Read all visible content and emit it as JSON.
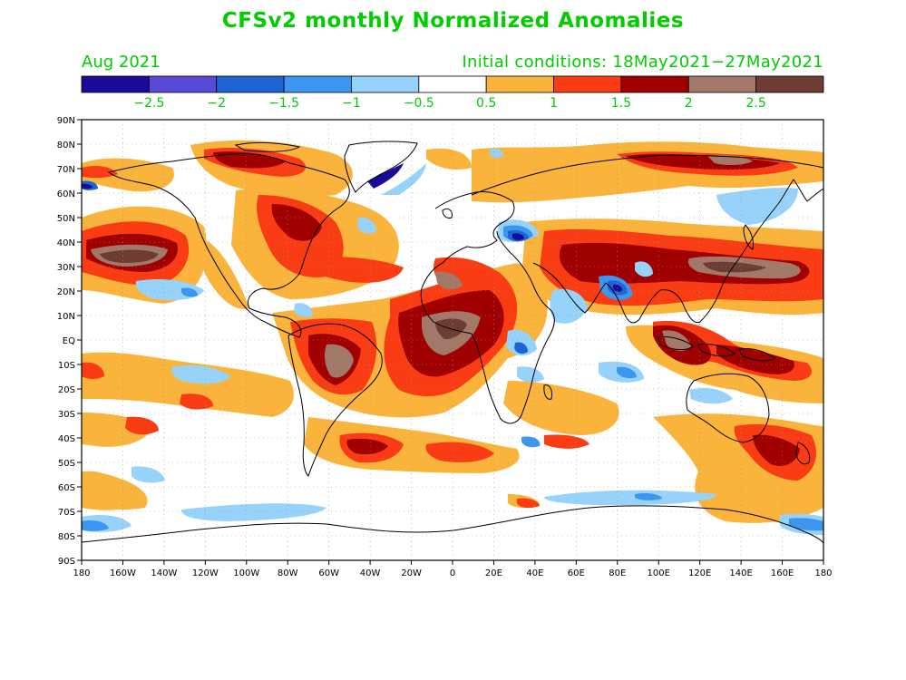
{
  "title": "CFSv2 monthly Normalized Anomalies",
  "month": "Aug 2021",
  "initial_conditions": "Initial conditions: 18May2021−27May2021",
  "colorbar": {
    "colors": [
      "#1a0a99",
      "#5a48d6",
      "#1e64d2",
      "#3c96f0",
      "#96d2fa",
      "#ffffff",
      "#fab43c",
      "#fa3c14",
      "#a00000",
      "#a27868",
      "#6e3c32"
    ],
    "labels": [
      "−2.5",
      "−2",
      "−1.5",
      "−1",
      "−0.5",
      "0.5",
      "1",
      "1.5",
      "2",
      "2.5"
    ]
  },
  "axes": {
    "lat_labels": [
      "90N",
      "80N",
      "70N",
      "60N",
      "50N",
      "40N",
      "30N",
      "20N",
      "10N",
      "EQ",
      "10S",
      "20S",
      "30S",
      "40S",
      "50S",
      "60S",
      "70S",
      "80S",
      "90S"
    ],
    "lon_labels": [
      "180",
      "160W",
      "140W",
      "120W",
      "100W",
      "80W",
      "60W",
      "40W",
      "20W",
      "0",
      "20E",
      "40E",
      "60E",
      "80E",
      "100E",
      "120E",
      "140E",
      "160E",
      "180"
    ]
  },
  "legend_colors": {
    "warm1": "#fab43c",
    "warm2": "#fa3c14",
    "warm3": "#a00000",
    "warm4": "#a27868",
    "cool1": "#96d2fa",
    "cool2": "#3c96f0",
    "cool3": "#1e64d2",
    "cool4": "#1a0a99"
  }
}
